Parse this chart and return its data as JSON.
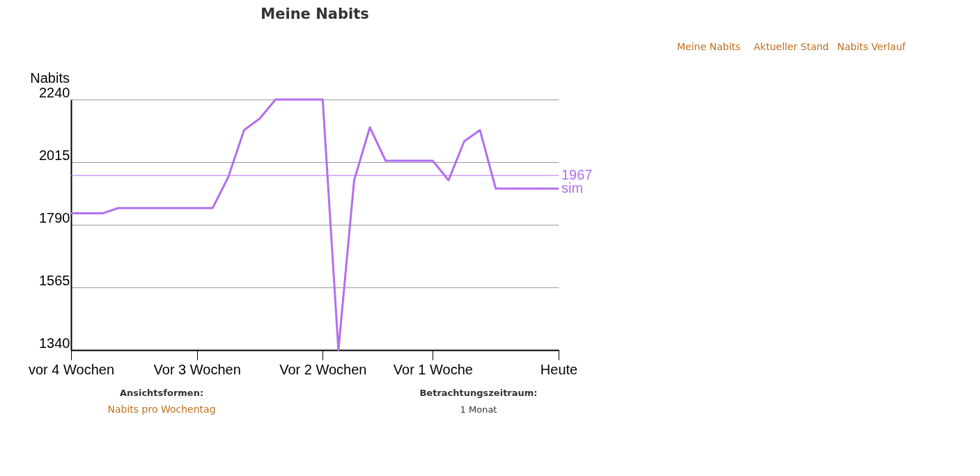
{
  "chart_data": {
    "type": "line",
    "title": "Meine Nabits",
    "ylabel": "Nabits",
    "categories": [
      "vor 4 Wochen",
      null,
      null,
      null,
      null,
      null,
      null,
      null,
      "Vor 3 Wochen",
      null,
      null,
      null,
      null,
      null,
      null,
      null,
      "Vor 2 Wochen",
      null,
      null,
      null,
      null,
      null,
      null,
      "Vor 1 Woche",
      null,
      null,
      null,
      null,
      null,
      null,
      null,
      "Heute"
    ],
    "series": [
      {
        "name": "sim",
        "color": "#b36ef0",
        "values": [
          1831,
          1831,
          1831,
          1850,
          1850,
          1850,
          1850,
          1850,
          1850,
          1850,
          1962,
          2130,
          2172,
          2240,
          2240,
          2240,
          2240,
          1340,
          1950,
          2140,
          2020,
          2020,
          2020,
          2020,
          1950,
          2090,
          2130,
          1920,
          1920,
          1920,
          1920,
          1920
        ]
      }
    ],
    "ylim": [
      1340,
      2240
    ],
    "yticks": [
      1340,
      1565,
      1790,
      2015,
      2240
    ],
    "grid": "y",
    "marker": "none",
    "line_style": "solid",
    "ref_lines": [
      {
        "axis": "y",
        "value": 1967,
        "label": "1967",
        "color": "#b36ef0"
      }
    ],
    "annotations": [
      "Meine Nabits",
      "Aktueller Stand",
      "Nabits Verlauf",
      "Ansichtsformen:",
      "Nabits pro Wochentag",
      "Betrachtungszeitraum:",
      "1 Monat"
    ]
  }
}
